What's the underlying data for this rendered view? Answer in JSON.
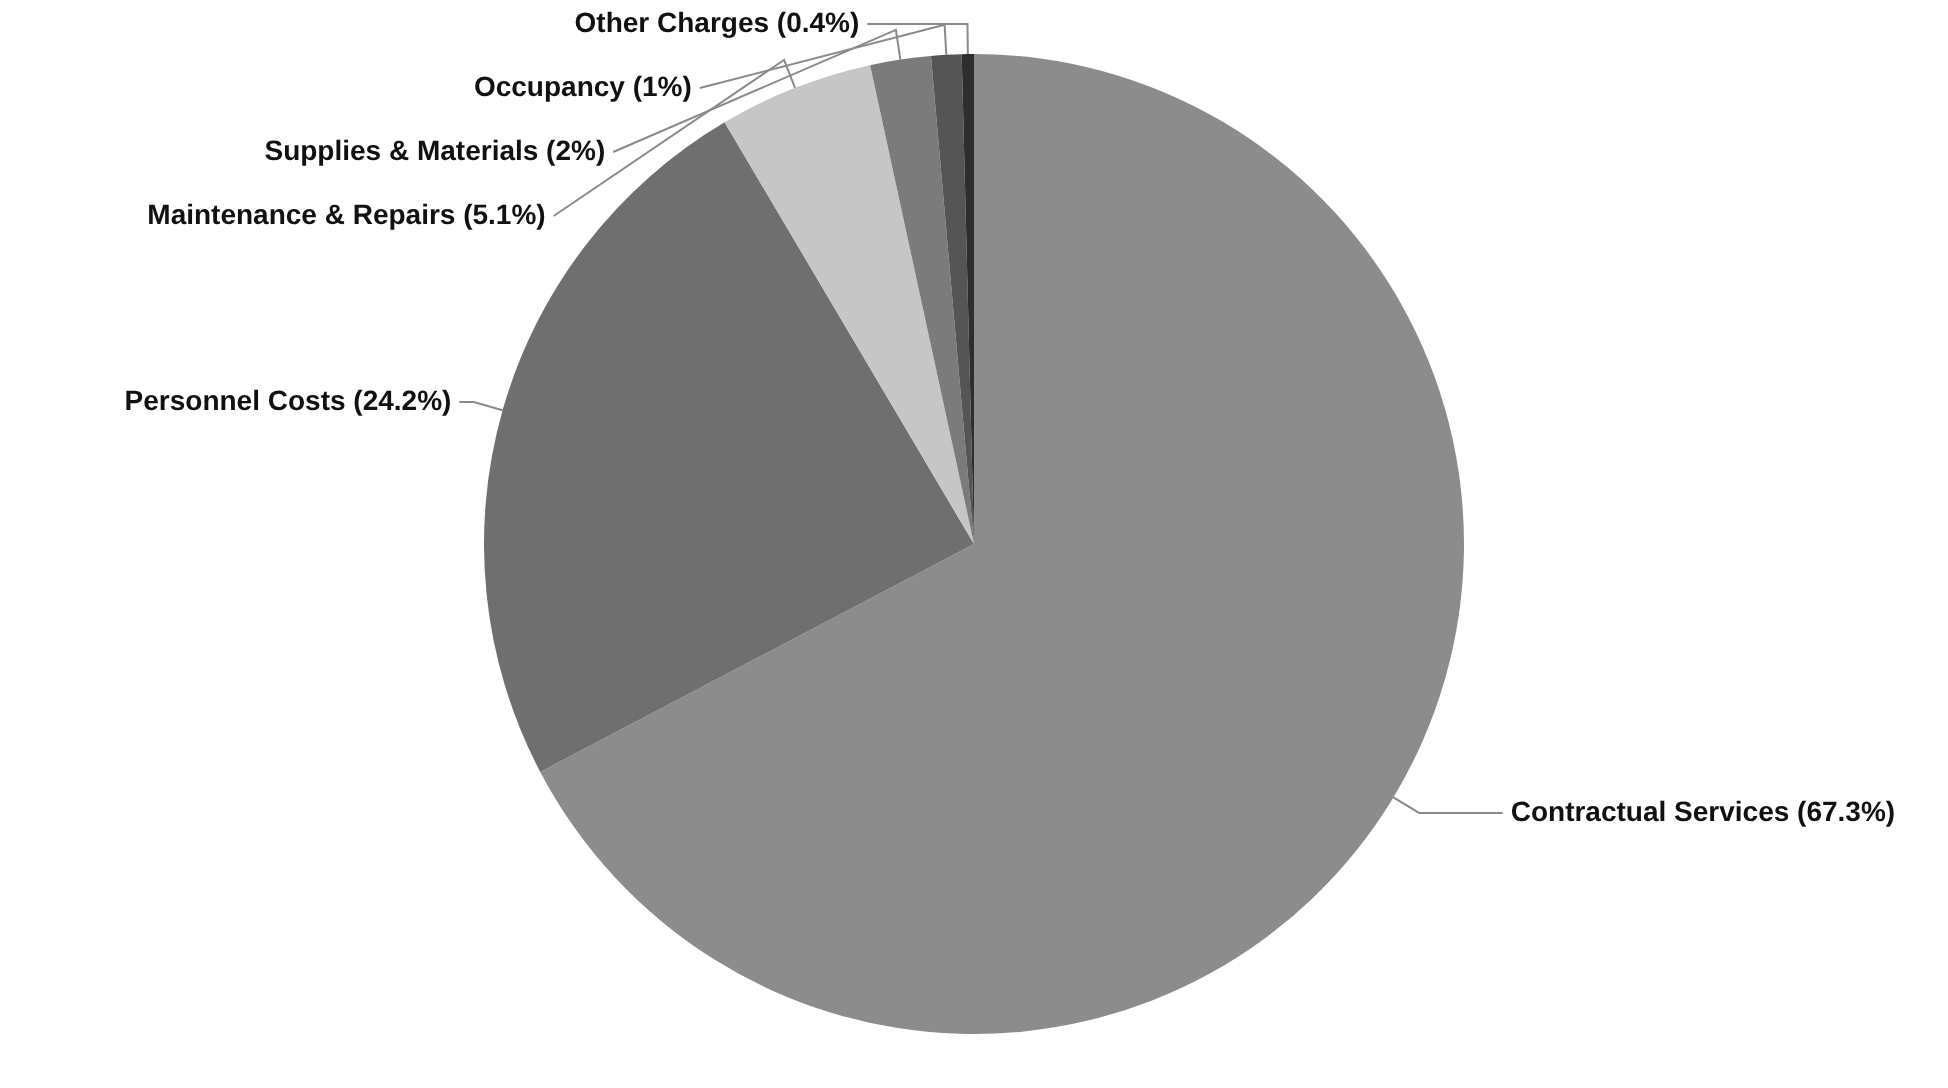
{
  "chart_data": {
    "type": "pie",
    "categories": [
      "Contractual Services (67.3%)",
      "Personnel Costs (24.2%)",
      "Maintenance & Repairs (5.1%)",
      "Supplies & Materials (2%)",
      "Occupancy (1%)",
      "Other Charges (0.4%)"
    ],
    "values": [
      67.3,
      24.2,
      5.1,
      2,
      1,
      0.4
    ],
    "colors": [
      "#8c8c8c",
      "#6f6f6f",
      "#c6c6c6",
      "#7b7b7b",
      "#555555",
      "#2e2e2e"
    ],
    "legend": false
  }
}
